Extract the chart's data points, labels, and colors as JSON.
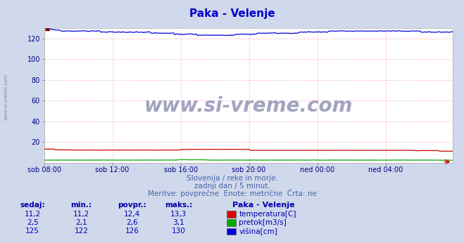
{
  "title": "Paka - Velenje",
  "title_color": "#0000cc",
  "bg_color": "#d0d8ec",
  "plot_bg_color": "#ffffff",
  "grid_color": "#ffaaaa",
  "xlabel_color": "#000080",
  "ylabel_color": "#000080",
  "ylim": [
    0,
    130
  ],
  "yticks": [
    20,
    40,
    60,
    80,
    100,
    120
  ],
  "xtick_labels": [
    "sob 08:00",
    "sob 12:00",
    "sob 16:00",
    "sob 20:00",
    "ned 00:00",
    "ned 04:00"
  ],
  "xtick_positions": [
    0,
    48,
    96,
    144,
    192,
    240
  ],
  "n_points": 288,
  "temp_color": "#cc0000",
  "flow_color": "#00aa00",
  "height_color": "#0000dd",
  "watermark": "www.si-vreme.com",
  "watermark_color": "#9999bb",
  "side_text": "www.si-vreme.com",
  "subtitle1": "Slovenija / reke in morje.",
  "subtitle2": "zadnji dan / 5 minut.",
  "subtitle3": "Meritve: povprečne  Enote: metrične  Črta: ne",
  "subtitle_color": "#4466aa",
  "table_header_labels": [
    "sedaj:",
    "min.:",
    "povpr.:",
    "maks.:"
  ],
  "table_color": "#0000aa",
  "legend_title": "Paka - Velenje",
  "rows": [
    {
      "sedaj": "11,2",
      "min": "11,2",
      "povpr": "12,4",
      "maks": "13,3",
      "label": "temperatura[C]",
      "color": "#dd0000"
    },
    {
      "sedaj": "2,5",
      "min": "2,1",
      "povpr": "2,6",
      "maks": "3,1",
      "label": "pretok[m3/s]",
      "color": "#00aa00"
    },
    {
      "sedaj": "125",
      "min": "122",
      "povpr": "126",
      "maks": "130",
      "label": "višina[cm]",
      "color": "#0000dd"
    }
  ]
}
